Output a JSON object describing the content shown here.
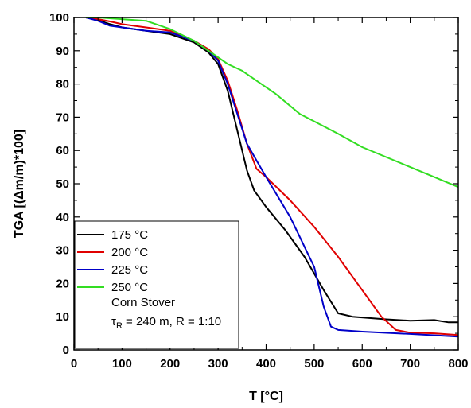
{
  "chart_data": {
    "type": "line",
    "xlabel": "T [°C]",
    "ylabel": "TGA [(Δm/m)*100]",
    "xlim": [
      0,
      800
    ],
    "ylim": [
      0,
      100
    ],
    "xticks": [
      0,
      100,
      200,
      300,
      400,
      500,
      600,
      700,
      800
    ],
    "yticks": [
      0,
      10,
      20,
      30,
      40,
      50,
      60,
      70,
      80,
      90,
      100
    ],
    "grid": false,
    "legend_position": "bottom-left",
    "colors": {
      "axis": "#000000"
    },
    "series": [
      {
        "name": "175 °C",
        "color": "#000000",
        "points": [
          [
            25,
            100
          ],
          [
            50,
            99.2
          ],
          [
            75,
            98
          ],
          [
            100,
            97
          ],
          [
            150,
            96
          ],
          [
            200,
            95
          ],
          [
            250,
            92.5
          ],
          [
            280,
            89.5
          ],
          [
            300,
            86
          ],
          [
            320,
            78
          ],
          [
            340,
            66
          ],
          [
            360,
            54
          ],
          [
            375,
            48
          ],
          [
            400,
            43
          ],
          [
            440,
            36
          ],
          [
            480,
            28
          ],
          [
            520,
            18
          ],
          [
            550,
            11
          ],
          [
            580,
            10
          ],
          [
            650,
            9.2
          ],
          [
            700,
            8.8
          ],
          [
            750,
            9
          ],
          [
            780,
            8.3
          ],
          [
            800,
            8.3
          ]
        ]
      },
      {
        "name": "200 °C",
        "color": "#e00000",
        "points": [
          [
            25,
            100
          ],
          [
            50,
            99.5
          ],
          [
            75,
            98.8
          ],
          [
            100,
            98
          ],
          [
            150,
            97
          ],
          [
            200,
            96
          ],
          [
            250,
            93
          ],
          [
            280,
            90.5
          ],
          [
            300,
            87.5
          ],
          [
            320,
            81
          ],
          [
            340,
            72
          ],
          [
            360,
            62
          ],
          [
            380,
            54.5
          ],
          [
            400,
            52
          ],
          [
            450,
            45
          ],
          [
            500,
            37
          ],
          [
            550,
            28
          ],
          [
            600,
            18
          ],
          [
            640,
            10
          ],
          [
            670,
            6
          ],
          [
            700,
            5.2
          ],
          [
            750,
            5
          ],
          [
            800,
            4.5
          ]
        ]
      },
      {
        "name": "225 °C",
        "color": "#0000c8",
        "points": [
          [
            25,
            100
          ],
          [
            50,
            99
          ],
          [
            75,
            97.5
          ],
          [
            100,
            97
          ],
          [
            150,
            96
          ],
          [
            200,
            95.5
          ],
          [
            250,
            93
          ],
          [
            280,
            90
          ],
          [
            300,
            87
          ],
          [
            320,
            80
          ],
          [
            340,
            71
          ],
          [
            360,
            62
          ],
          [
            380,
            57
          ],
          [
            400,
            52
          ],
          [
            450,
            40
          ],
          [
            500,
            25
          ],
          [
            520,
            13
          ],
          [
            535,
            7
          ],
          [
            550,
            6
          ],
          [
            600,
            5.5
          ],
          [
            700,
            4.8
          ],
          [
            800,
            4
          ]
        ]
      },
      {
        "name": "250 °C",
        "color": "#33dd22",
        "points": [
          [
            25,
            100
          ],
          [
            50,
            100
          ],
          [
            100,
            99.5
          ],
          [
            150,
            99
          ],
          [
            200,
            96.5
          ],
          [
            250,
            93
          ],
          [
            290,
            89
          ],
          [
            320,
            86
          ],
          [
            350,
            84
          ],
          [
            380,
            81
          ],
          [
            420,
            77
          ],
          [
            470,
            71
          ],
          [
            550,
            65
          ],
          [
            600,
            61
          ],
          [
            700,
            55
          ],
          [
            750,
            52
          ],
          [
            800,
            49
          ]
        ]
      }
    ],
    "annotations": {
      "sample": "Corn Stover",
      "tau_symbol": "τ",
      "tau_subscript": "R",
      "conditions": " = 240 m, R = 1:10"
    }
  }
}
